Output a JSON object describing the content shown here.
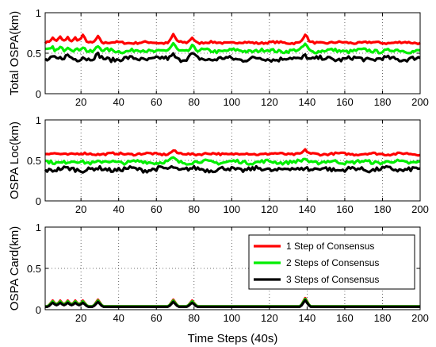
{
  "chart_data": [
    {
      "type": "line",
      "ylabel": "Total OSPA(km)",
      "xlabel": "",
      "xlim": [
        1,
        200
      ],
      "ylim": [
        0,
        1
      ],
      "xticks": [
        "20",
        "40",
        "60",
        "80",
        "100",
        "120",
        "140",
        "160",
        "180",
        "200"
      ],
      "yticks": [
        "0",
        "0.5",
        "1"
      ],
      "grid": true,
      "series": [
        {
          "color": "#ff0000",
          "baseline": 0.63,
          "noise": 0.012,
          "peaks": [
            [
              5,
              0.05
            ],
            [
              9,
              0.07
            ],
            [
              13,
              0.07
            ],
            [
              17,
              0.06
            ],
            [
              21,
              0.08
            ],
            [
              29,
              0.08
            ],
            [
              69,
              0.1
            ],
            [
              79,
              0.07
            ],
            [
              139,
              0.1
            ]
          ]
        },
        {
          "color": "#00ee00",
          "baseline": 0.53,
          "noise": 0.02,
          "peaks": [
            [
              5,
              0.04
            ],
            [
              9,
              0.05
            ],
            [
              13,
              0.05
            ],
            [
              21,
              0.05
            ],
            [
              29,
              0.06
            ],
            [
              69,
              0.08
            ],
            [
              79,
              0.06
            ],
            [
              139,
              0.08
            ]
          ]
        },
        {
          "color": "#000000",
          "baseline": 0.43,
          "noise": 0.025,
          "peaks": [
            [
              5,
              0.03
            ],
            [
              13,
              0.03
            ],
            [
              21,
              0.04
            ],
            [
              29,
              0.04
            ],
            [
              69,
              0.06
            ],
            [
              79,
              0.05
            ],
            [
              139,
              0.06
            ]
          ]
        }
      ]
    },
    {
      "type": "line",
      "ylabel": "OSPA Loc(km)",
      "xlabel": "",
      "xlim": [
        1,
        200
      ],
      "ylim": [
        0,
        1
      ],
      "xticks": [
        "20",
        "40",
        "60",
        "80",
        "100",
        "120",
        "140",
        "160",
        "180",
        "200"
      ],
      "yticks": [
        "0",
        "0.5",
        "1"
      ],
      "grid": true,
      "series": [
        {
          "color": "#ff0000",
          "baseline": 0.58,
          "noise": 0.012,
          "peaks": [
            [
              69,
              0.04
            ],
            [
              139,
              0.04
            ]
          ]
        },
        {
          "color": "#00ee00",
          "baseline": 0.48,
          "noise": 0.02,
          "peaks": [
            [
              69,
              0.04
            ],
            [
              139,
              0.04
            ]
          ]
        },
        {
          "color": "#000000",
          "baseline": 0.39,
          "noise": 0.025,
          "peaks": [
            [
              69,
              0.04
            ],
            [
              139,
              0.04
            ]
          ]
        }
      ]
    },
    {
      "type": "line",
      "ylabel": "OSPA Card(km)",
      "xlabel": "Time Steps (40s)",
      "xlim": [
        1,
        200
      ],
      "ylim": [
        0,
        1
      ],
      "xticks": [
        "20",
        "40",
        "60",
        "80",
        "100",
        "120",
        "140",
        "160",
        "180",
        "200"
      ],
      "yticks": [
        "0",
        "0.5",
        "1"
      ],
      "grid": true,
      "legend_position": "top-right",
      "legend": [
        "1 Step of Consensus",
        "2 Steps of Consensus",
        "3 Steps of Consensus"
      ],
      "series": [
        {
          "name": "1 Step of Consensus",
          "color": "#ff0000",
          "baseline": 0.04,
          "noise": 0.0,
          "peaks": [
            [
              5,
              0.07
            ],
            [
              9,
              0.07
            ],
            [
              13,
              0.07
            ],
            [
              17,
              0.07
            ],
            [
              21,
              0.07
            ],
            [
              29,
              0.08
            ],
            [
              69,
              0.08
            ],
            [
              79,
              0.07
            ],
            [
              139,
              0.1
            ]
          ]
        },
        {
          "name": "2 Steps of Consensus",
          "color": "#00ee00",
          "baseline": 0.04,
          "noise": 0.0,
          "peaks": [
            [
              5,
              0.06
            ],
            [
              9,
              0.06
            ],
            [
              13,
              0.06
            ],
            [
              17,
              0.06
            ],
            [
              21,
              0.06
            ],
            [
              29,
              0.07
            ],
            [
              69,
              0.07
            ],
            [
              79,
              0.06
            ],
            [
              139,
              0.09
            ]
          ]
        },
        {
          "name": "3 Steps of Consensus",
          "color": "#000000",
          "baseline": 0.035,
          "noise": 0.0,
          "peaks": [
            [
              5,
              0.05
            ],
            [
              9,
              0.05
            ],
            [
              13,
              0.05
            ],
            [
              17,
              0.05
            ],
            [
              21,
              0.05
            ],
            [
              29,
              0.06
            ],
            [
              69,
              0.06
            ],
            [
              79,
              0.05
            ],
            [
              139,
              0.08
            ]
          ]
        }
      ]
    }
  ]
}
